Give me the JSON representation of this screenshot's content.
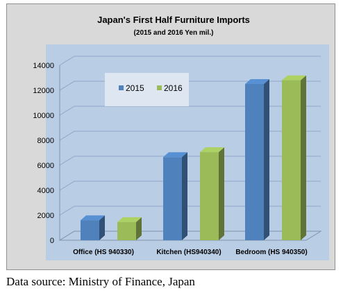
{
  "source_note": "Data source: Ministry of Finance, Japan",
  "chart_data": {
    "type": "bar",
    "title": "Japan's First Half Furniture Imports",
    "subtitle": "(2015 and 2016 Yen mil.)",
    "categories": [
      "Office (HS 940330)",
      "Kitchen (HS940340)",
      "Bedroom (HS 940350)"
    ],
    "series": [
      {
        "name": "2015",
        "values": [
          1600,
          6650,
          12500
        ],
        "color": "#4f81bd"
      },
      {
        "name": "2016",
        "values": [
          1450,
          7050,
          12800
        ],
        "color": "#9bbb59"
      }
    ],
    "ylim": [
      0,
      14000
    ],
    "yticks": [
      0,
      2000,
      4000,
      6000,
      8000,
      10000,
      12000,
      14000
    ],
    "grid": true,
    "legend_position": "top-left inside plot",
    "style": "3d-column",
    "colors": {
      "plot_background": "#b9cde5",
      "frame_background": "#d9d9d9",
      "gridline": "#8ea6c8"
    }
  }
}
